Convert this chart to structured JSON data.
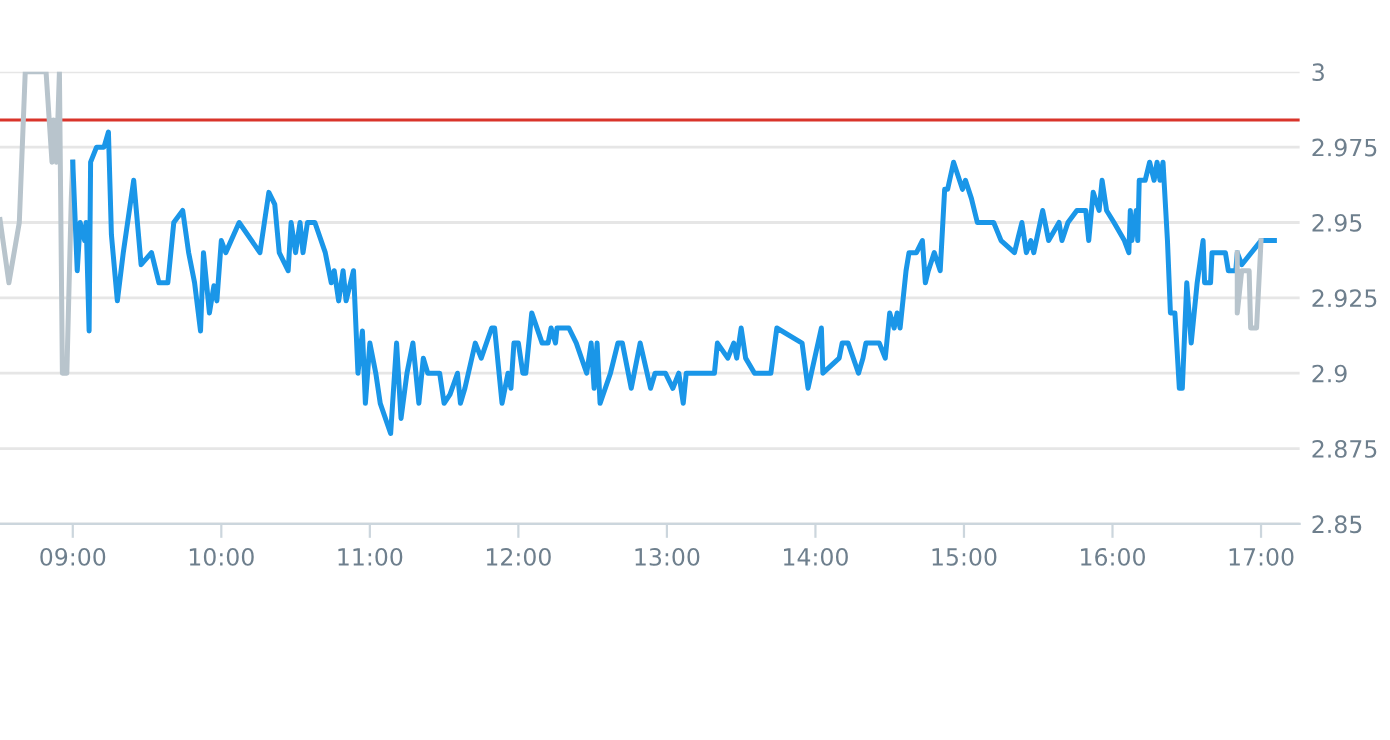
{
  "chart_data": {
    "type": "line",
    "xlim": [
      8.51,
      17.26
    ],
    "ylim": [
      2.85,
      3
    ],
    "xticks": [
      {
        "value": 9,
        "label": "09:00"
      },
      {
        "value": 10,
        "label": "10:00"
      },
      {
        "value": 11,
        "label": "11:00"
      },
      {
        "value": 12,
        "label": "12:00"
      },
      {
        "value": 13,
        "label": "13:00"
      },
      {
        "value": 14,
        "label": "14:00"
      },
      {
        "value": 15,
        "label": "15:00"
      },
      {
        "value": 16,
        "label": "16:00"
      },
      {
        "value": 17,
        "label": "17:00"
      }
    ],
    "yticks": [
      2.85,
      2.875,
      2.9,
      2.925,
      2.95,
      2.975,
      3
    ],
    "grid": "y",
    "legend": false,
    "marker": "none",
    "line_style": "solid",
    "ref_lines": [
      {
        "axis": "y",
        "value": 2.984,
        "color": "#d9342b"
      }
    ],
    "series": [
      {
        "color": "#b8c4cc",
        "x": [
          8.51,
          8.57,
          8.64,
          8.68,
          8.82,
          8.86,
          8.87,
          8.89,
          8.91,
          8.93,
          8.96,
          8.99,
          9.0
        ],
        "values": [
          2.951,
          2.93,
          2.95,
          3.0,
          3.0,
          2.97,
          2.984,
          2.97,
          3.0,
          2.9,
          2.9,
          2.958,
          2.97
        ]
      },
      {
        "color": "#1a96e8",
        "x": [
          9.0,
          9.03,
          9.05,
          9.08,
          9.09,
          9.11,
          9.12,
          9.16,
          9.21,
          9.24,
          9.26,
          9.3,
          9.34,
          9.41,
          9.46,
          9.53,
          9.58,
          9.64,
          9.68,
          9.74,
          9.78,
          9.82,
          9.86,
          9.88,
          9.92,
          9.95,
          9.97,
          10.0,
          10.03,
          10.12,
          10.26,
          10.29,
          10.32,
          10.36,
          10.39,
          10.45,
          10.47,
          10.5,
          10.53,
          10.55,
          10.58,
          10.63,
          10.7,
          10.74,
          10.76,
          10.79,
          10.82,
          10.84,
          10.89,
          10.92,
          10.95,
          10.97,
          11.0,
          11.04,
          11.07,
          11.14,
          11.18,
          11.21,
          11.25,
          11.29,
          11.33,
          11.36,
          11.39,
          11.47,
          11.5,
          11.54,
          11.59,
          11.61,
          11.64,
          11.71,
          11.75,
          11.82,
          11.84,
          11.89,
          11.93,
          11.95,
          11.97,
          12.0,
          12.03,
          12.05,
          12.09,
          12.16,
          12.2,
          12.22,
          12.25,
          12.26,
          12.34,
          12.39,
          12.46,
          12.49,
          12.51,
          12.53,
          12.55,
          12.62,
          12.67,
          12.7,
          12.76,
          12.82,
          12.89,
          12.92,
          12.99,
          13.04,
          13.08,
          13.11,
          13.13,
          13.32,
          13.34,
          13.41,
          13.45,
          13.47,
          13.5,
          13.53,
          13.59,
          13.7,
          13.74,
          13.91,
          13.95,
          14.04,
          14.05,
          14.16,
          14.18,
          14.22,
          14.29,
          14.32,
          14.34,
          14.43,
          14.47,
          14.5,
          14.53,
          14.55,
          14.57,
          14.61,
          14.63,
          14.68,
          14.72,
          14.74,
          14.76,
          14.8,
          14.84,
          14.87,
          14.89,
          14.93,
          14.99,
          15.01,
          15.05,
          15.09,
          15.2,
          15.25,
          15.34,
          15.39,
          15.42,
          15.45,
          15.47,
          15.53,
          15.57,
          15.64,
          15.66,
          15.7,
          15.76,
          15.82,
          15.84,
          15.87,
          15.91,
          15.93,
          15.96,
          16.01,
          16.08,
          16.11,
          16.12,
          16.13,
          16.16,
          16.17,
          16.18,
          16.22,
          16.25,
          16.28,
          16.3,
          16.32,
          16.34,
          16.37,
          16.39,
          16.42,
          16.45,
          16.47,
          16.5,
          16.53,
          16.57,
          16.61,
          16.62,
          16.66,
          16.67,
          16.76,
          16.78,
          16.83,
          16.84,
          16.87,
          17.0,
          17.09
        ],
        "values": [
          2.97,
          2.934,
          2.95,
          2.944,
          2.95,
          2.914,
          2.97,
          2.975,
          2.975,
          2.98,
          2.946,
          2.924,
          2.94,
          2.964,
          2.936,
          2.94,
          2.93,
          2.93,
          2.95,
          2.954,
          2.94,
          2.93,
          2.914,
          2.94,
          2.92,
          2.929,
          2.924,
          2.944,
          2.94,
          2.95,
          2.94,
          2.95,
          2.96,
          2.956,
          2.94,
          2.934,
          2.95,
          2.94,
          2.95,
          2.94,
          2.95,
          2.95,
          2.94,
          2.93,
          2.934,
          2.924,
          2.934,
          2.924,
          2.934,
          2.9,
          2.914,
          2.89,
          2.91,
          2.9,
          2.89,
          2.88,
          2.91,
          2.885,
          2.9,
          2.91,
          2.89,
          2.905,
          2.9,
          2.9,
          2.89,
          2.893,
          2.9,
          2.89,
          2.895,
          2.91,
          2.905,
          2.915,
          2.915,
          2.89,
          2.9,
          2.895,
          2.91,
          2.91,
          2.9,
          2.9,
          2.92,
          2.91,
          2.91,
          2.915,
          2.91,
          2.915,
          2.915,
          2.91,
          2.9,
          2.91,
          2.895,
          2.91,
          2.89,
          2.9,
          2.91,
          2.91,
          2.895,
          2.91,
          2.895,
          2.9,
          2.9,
          2.895,
          2.9,
          2.89,
          2.9,
          2.9,
          2.91,
          2.905,
          2.91,
          2.905,
          2.915,
          2.905,
          2.9,
          2.9,
          2.915,
          2.91,
          2.895,
          2.915,
          2.9,
          2.905,
          2.91,
          2.91,
          2.9,
          2.905,
          2.91,
          2.91,
          2.905,
          2.92,
          2.915,
          2.92,
          2.915,
          2.934,
          2.94,
          2.94,
          2.944,
          2.93,
          2.934,
          2.94,
          2.934,
          2.961,
          2.961,
          2.97,
          2.961,
          2.964,
          2.958,
          2.95,
          2.95,
          2.944,
          2.94,
          2.95,
          2.94,
          2.944,
          2.94,
          2.954,
          2.944,
          2.95,
          2.944,
          2.95,
          2.954,
          2.954,
          2.944,
          2.96,
          2.954,
          2.964,
          2.954,
          2.95,
          2.944,
          2.94,
          2.954,
          2.944,
          2.954,
          2.944,
          2.964,
          2.964,
          2.97,
          2.964,
          2.97,
          2.964,
          2.97,
          2.944,
          2.92,
          2.92,
          2.895,
          2.895,
          2.93,
          2.91,
          2.93,
          2.944,
          2.93,
          2.93,
          2.94,
          2.94,
          2.934,
          2.934,
          2.94,
          2.936,
          2.944,
          2.944
        ]
      },
      {
        "color": "#b8c4cc",
        "x": [
          16.84,
          16.84,
          16.87,
          16.92,
          16.93,
          16.97,
          17.0
        ],
        "values": [
          2.94,
          2.92,
          2.934,
          2.934,
          2.915,
          2.915,
          2.944
        ]
      }
    ]
  }
}
